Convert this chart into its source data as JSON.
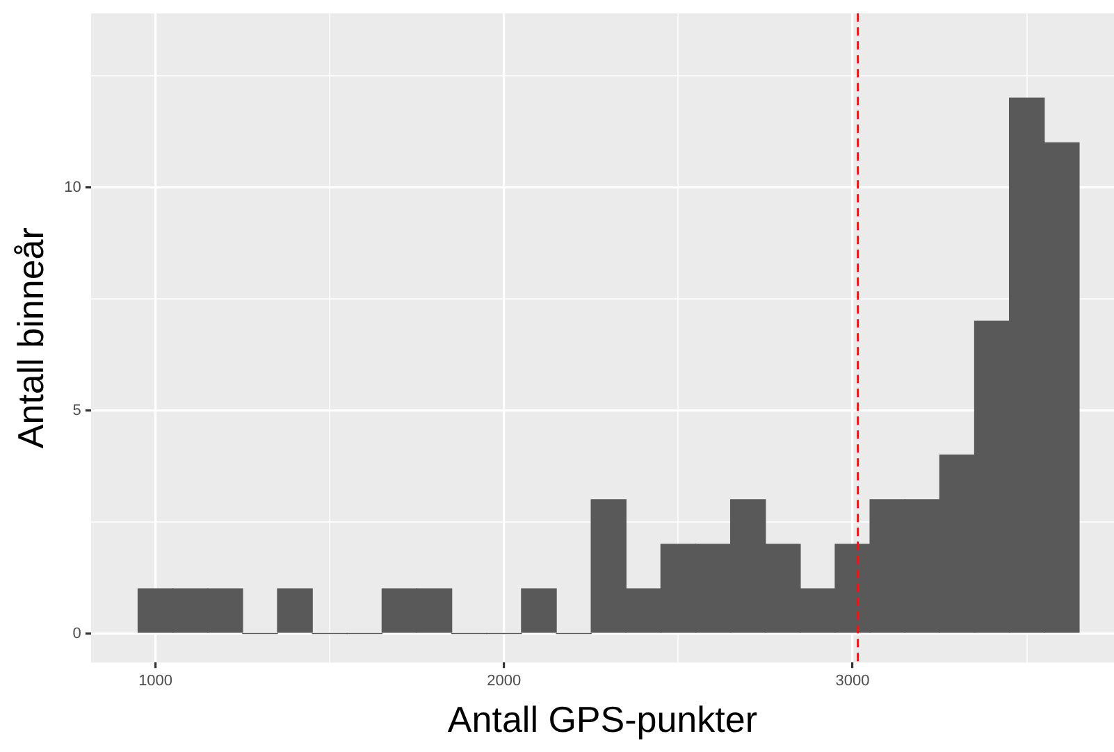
{
  "chart_data": {
    "type": "histogram",
    "xlabel": "Antall GPS-punkter",
    "ylabel": "Antall binneår",
    "bins": [
      950,
      1050,
      1150,
      1250,
      1350,
      1450,
      1550,
      1650,
      1750,
      1850,
      1950,
      2050,
      2150,
      2250,
      2350,
      2450,
      2550,
      2650,
      2750,
      2850,
      2950,
      3050,
      3150,
      3250,
      3350,
      3450,
      3550,
      3650
    ],
    "values": [
      1,
      1,
      1,
      0,
      1,
      0,
      0,
      1,
      1,
      0,
      0,
      1,
      0,
      3,
      1,
      2,
      2,
      3,
      2,
      1,
      2,
      3,
      3,
      4,
      7,
      12,
      11
    ],
    "color": "#595959",
    "xlim": [
      815,
      3750
    ],
    "xticks": [
      1000,
      {
        "value": 1500,
        "label": null
      },
      2000,
      {
        "value": 2500,
        "label": null
      },
      3000,
      {
        "value": 3500,
        "label": null
      }
    ],
    "ylim": [
      -0.65,
      13.9
    ],
    "yticks": [
      0,
      {
        "value": 2.5,
        "label": null
      },
      5,
      {
        "value": 7.5,
        "label": null
      },
      10,
      {
        "value": 12.5,
        "label": null
      }
    ],
    "ref_lines": [
      {
        "axis": "x",
        "value": 3015,
        "color": "#e41a1c",
        "line_style": "dashed"
      }
    ],
    "grid": true,
    "legend": false
  }
}
